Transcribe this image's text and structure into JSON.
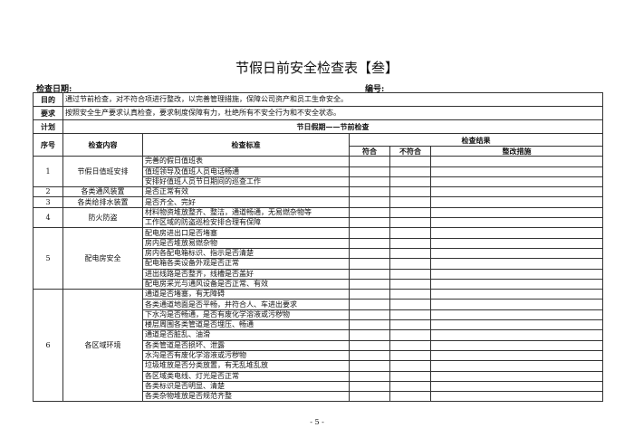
{
  "title": "节假日前安全检查表【叁】",
  "check_date_label": "检查日期:",
  "number_label": "编号:",
  "purpose": {
    "label": "目的",
    "text": "通过节前检查，对不符合项进行整改，以完善管理措施，保障公司资产和员工生命安全。"
  },
  "requirement": {
    "label": "要求",
    "text": "按照安全生产要求认真检查，要求制度保障有力，杜绝所有不安全行为和不安全状态。"
  },
  "plan": {
    "label": "计划",
    "text": "节日假期——节前检查"
  },
  "headers": {
    "no": "序号",
    "content": "检查内容",
    "standard": "检查标准",
    "result": "检查结果",
    "pass": "符合",
    "fail": "不符合",
    "fix": "整改措施"
  },
  "groups": [
    {
      "no": "1",
      "content": "节假日值班安排",
      "items": [
        "完善的假日值班表",
        "值班领导及值班人员电话畅通",
        "安排好值班人员节日期间的巡查工作"
      ]
    },
    {
      "no": "2",
      "content": "各类通风装置",
      "items": [
        "是否正常有效"
      ]
    },
    {
      "no": "3",
      "content": "各类给排水装置",
      "items": [
        "是否齐全、完好"
      ]
    },
    {
      "no": "4",
      "content": "防火防盗",
      "items": [
        "材料物资堆放整齐、整洁，通道畅通，无易燃杂物等",
        "工作区域的防盗巡检安排合理有保障"
      ]
    },
    {
      "no": "5",
      "content": "配电房安全",
      "items": [
        "配电房进出口是否堵塞",
        "房内是否堆放易燃杂物",
        "房内各配电箱标识、指示是否清楚",
        "配电箱各类设备外观是否正常",
        "进出线路是否整齐，线槽是否盖好",
        "配电房采光与通风设备是否正常、有效"
      ]
    },
    {
      "no": "6",
      "content": "各区域环境",
      "items": [
        "通道是否堵塞，有无障碍",
        "各类通道地面是否平畅，并符合人、车进出要求",
        "下水沟是否畅通，是否有废化学溶液或污秽物",
        "楼层周围各类管道是否埋压、畅通",
        "通道是否脏乱、油滑",
        "各类管道是否损坏、泄露",
        "水沟是否有废化学溶液或污秽物",
        "垃圾堆放是否分类放置，有无乱堆乱放",
        "各区域类电线、灯光是否正常",
        "各类标识是否明显、清楚",
        "各类杂物堆放是否规范齐整"
      ]
    }
  ],
  "page_number": "- 5 -"
}
